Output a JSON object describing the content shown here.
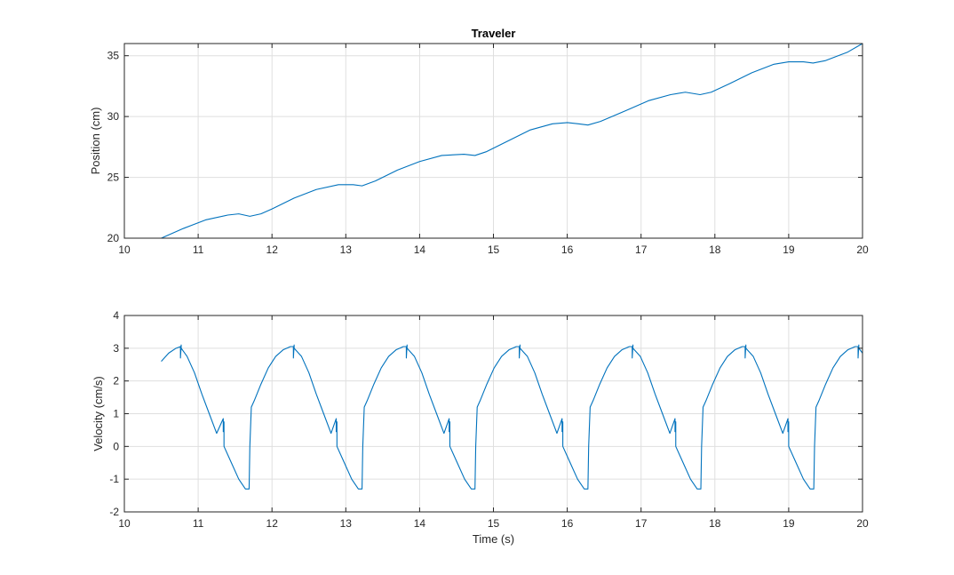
{
  "colors": {
    "series": "#0072BD",
    "grid": "#dfdfdf",
    "axis": "#262626"
  },
  "chart_data": [
    {
      "type": "line",
      "title": "Traveler",
      "xlabel": "",
      "ylabel": "Position (cm)",
      "xlim": [
        10,
        20
      ],
      "ylim": [
        20,
        36
      ],
      "xticks": [
        "10",
        "11",
        "12",
        "13",
        "14",
        "15",
        "16",
        "17",
        "18",
        "19",
        "20"
      ],
      "yticks": [
        "20",
        "25",
        "30",
        "35"
      ],
      "grid": true,
      "series": [
        {
          "x": [
            10.5,
            10.8,
            11.1,
            11.4,
            11.55,
            11.7,
            11.85,
            12.0,
            12.3,
            12.6,
            12.9,
            13.1,
            13.22,
            13.4,
            13.7,
            14.0,
            14.3,
            14.6,
            14.75,
            14.9,
            15.2,
            15.5,
            15.8,
            16.0,
            16.15,
            16.28,
            16.45,
            16.8,
            17.1,
            17.4,
            17.6,
            17.8,
            17.95,
            18.2,
            18.5,
            18.8,
            19.0,
            19.2,
            19.33,
            19.5,
            19.8,
            20.0
          ],
          "y": [
            20.0,
            20.8,
            21.5,
            21.9,
            22.0,
            21.8,
            22.0,
            22.4,
            23.3,
            24.0,
            24.4,
            24.4,
            24.3,
            24.7,
            25.6,
            26.3,
            26.8,
            26.9,
            26.8,
            27.1,
            28.0,
            28.9,
            29.4,
            29.5,
            29.4,
            29.3,
            29.6,
            30.5,
            31.3,
            31.8,
            32.0,
            31.8,
            32.0,
            32.7,
            33.6,
            34.3,
            34.5,
            34.5,
            34.4,
            34.6,
            35.3,
            36.0
          ]
        }
      ]
    },
    {
      "type": "line",
      "title": "",
      "xlabel": "Time (s)",
      "ylabel": "Velocity (cm/s)",
      "xlim": [
        10,
        20
      ],
      "ylim": [
        -2,
        4
      ],
      "xticks": [
        "10",
        "11",
        "12",
        "13",
        "14",
        "15",
        "16",
        "17",
        "18",
        "19",
        "20"
      ],
      "yticks": [
        "-2",
        "-1",
        "0",
        "1",
        "2",
        "3",
        "4"
      ],
      "grid": true,
      "series": [
        {
          "x": [
            10.5,
            10.6,
            10.7,
            10.76,
            10.76,
            10.77,
            10.77,
            10.85,
            10.95,
            11.05,
            11.15,
            11.25,
            11.34,
            11.34,
            11.35,
            11.35,
            11.45,
            11.55,
            11.64,
            11.69,
            11.7,
            11.72,
            11.76,
            11.85,
            11.95,
            12.05,
            12.15,
            12.25,
            12.29,
            12.29,
            12.3,
            12.3,
            12.4,
            12.5,
            12.6,
            12.7,
            12.8,
            12.87,
            12.87,
            12.88,
            12.88,
            12.98,
            13.08,
            13.17,
            13.22,
            13.23,
            13.25,
            13.29,
            13.38,
            13.48,
            13.58,
            13.68,
            13.78,
            13.82,
            13.82,
            13.83,
            13.83,
            13.93,
            14.03,
            14.13,
            14.23,
            14.33,
            14.4,
            14.4,
            14.41,
            14.41,
            14.51,
            14.61,
            14.7,
            14.75,
            14.76,
            14.78,
            14.82,
            14.91,
            15.01,
            15.11,
            15.21,
            15.31,
            15.35,
            15.35,
            15.36,
            15.36,
            15.46,
            15.56,
            15.66,
            15.76,
            15.86,
            15.93,
            15.93,
            15.94,
            15.94,
            16.04,
            16.14,
            16.23,
            16.28,
            16.29,
            16.31,
            16.35,
            16.44,
            16.54,
            16.64,
            16.74,
            16.84,
            16.88,
            16.88,
            16.89,
            16.89,
            16.99,
            17.09,
            17.19,
            17.29,
            17.39,
            17.46,
            17.46,
            17.47,
            17.47,
            17.57,
            17.67,
            17.76,
            17.81,
            17.82,
            17.84,
            17.88,
            17.97,
            18.07,
            18.17,
            18.27,
            18.37,
            18.41,
            18.41,
            18.42,
            18.42,
            18.52,
            18.62,
            18.72,
            18.82,
            18.92,
            18.99,
            18.99,
            19.0,
            19.0,
            19.1,
            19.2,
            19.29,
            19.34,
            19.35,
            19.37,
            19.41,
            19.5,
            19.6,
            19.7,
            19.8,
            19.9,
            19.94,
            19.94,
            19.95,
            19.95,
            20.0
          ],
          "y": [
            2.6,
            2.85,
            3.0,
            3.05,
            2.7,
            3.1,
            3.0,
            2.75,
            2.25,
            1.6,
            1.0,
            0.4,
            0.85,
            0.45,
            0.75,
            0.0,
            -0.5,
            -1.0,
            -1.3,
            -1.3,
            0.0,
            1.2,
            1.4,
            1.9,
            2.4,
            2.75,
            2.95,
            3.05,
            3.05,
            2.7,
            3.1,
            3.0,
            2.75,
            2.25,
            1.6,
            1.0,
            0.4,
            0.85,
            0.45,
            0.75,
            0.0,
            -0.5,
            -1.0,
            -1.3,
            -1.3,
            0.0,
            1.2,
            1.4,
            1.9,
            2.4,
            2.75,
            2.95,
            3.05,
            3.05,
            2.7,
            3.1,
            3.0,
            2.75,
            2.25,
            1.6,
            1.0,
            0.4,
            0.85,
            0.45,
            0.75,
            0.0,
            -0.5,
            -1.0,
            -1.3,
            -1.3,
            0.0,
            1.2,
            1.4,
            1.9,
            2.4,
            2.75,
            2.95,
            3.05,
            3.05,
            2.7,
            3.1,
            3.0,
            2.75,
            2.25,
            1.6,
            1.0,
            0.4,
            0.85,
            0.45,
            0.75,
            0.0,
            -0.5,
            -1.0,
            -1.3,
            -1.3,
            0.0,
            1.2,
            1.4,
            1.9,
            2.4,
            2.75,
            2.95,
            3.05,
            3.05,
            2.7,
            3.1,
            3.0,
            2.75,
            2.25,
            1.6,
            1.0,
            0.4,
            0.85,
            0.45,
            0.75,
            0.0,
            -0.5,
            -1.0,
            -1.3,
            -1.3,
            0.0,
            1.2,
            1.4,
            1.9,
            2.4,
            2.75,
            2.95,
            3.05,
            3.05,
            2.7,
            3.1,
            3.0,
            2.75,
            2.25,
            1.6,
            1.0,
            0.4,
            0.85,
            0.45,
            0.75,
            0.0,
            -0.5,
            -1.0,
            -1.3,
            -1.3,
            0.0,
            1.2,
            1.4,
            1.9,
            2.4,
            2.75,
            2.95,
            3.05,
            3.05,
            2.7,
            3.1,
            3.0,
            2.85
          ]
        }
      ]
    }
  ]
}
